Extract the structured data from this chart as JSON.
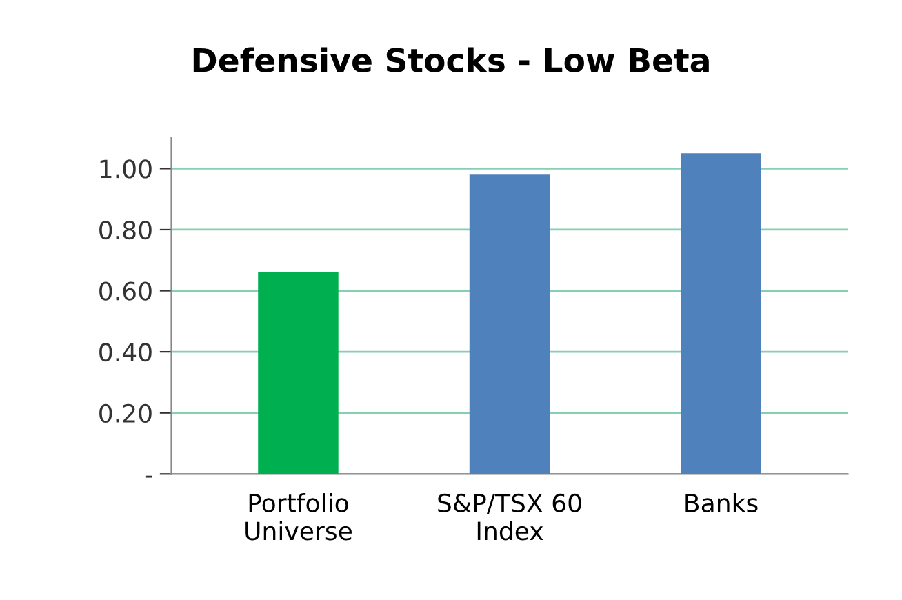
{
  "chart_data": {
    "type": "bar",
    "title": "Defensive Stocks - Low Beta",
    "categories": [
      "Portfolio\nUniverse",
      "S&P/TSX 60\nIndex",
      "Banks"
    ],
    "values": [
      0.66,
      0.98,
      1.05
    ],
    "colors": [
      "#00b050",
      "#4f81bd",
      "#4f81bd"
    ],
    "ylim": [
      0,
      1.1
    ],
    "yticks": [
      {
        "value": 0,
        "label": "-"
      },
      {
        "value": 0.2,
        "label": "0.20"
      },
      {
        "value": 0.4,
        "label": "0.40"
      },
      {
        "value": 0.6,
        "label": "0.60"
      },
      {
        "value": 0.8,
        "label": "0.80"
      },
      {
        "value": 1.0,
        "label": "1.00"
      }
    ],
    "grid": "y"
  }
}
